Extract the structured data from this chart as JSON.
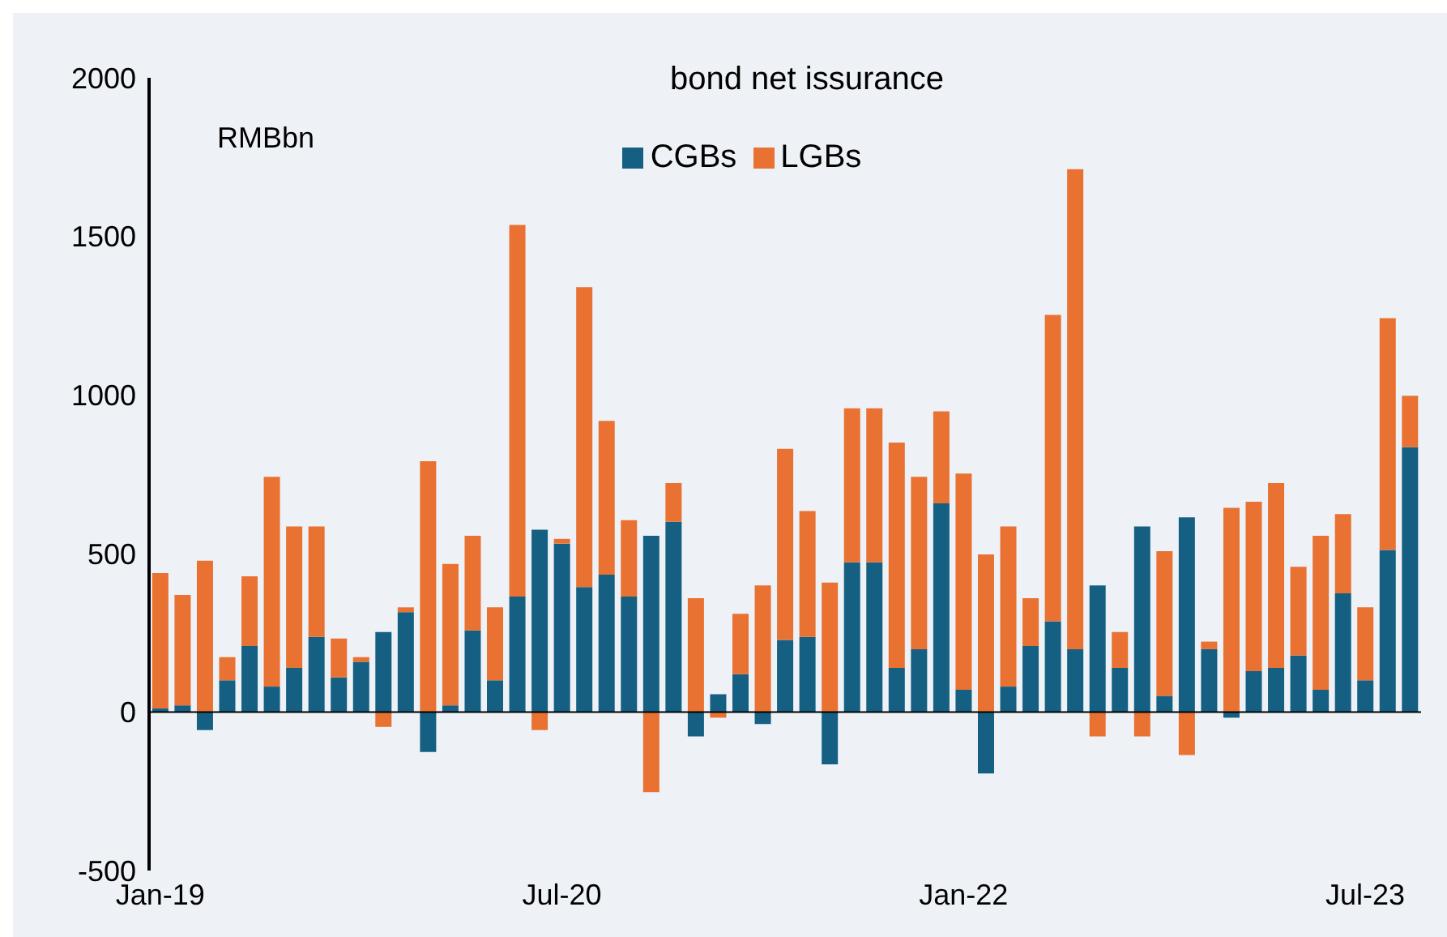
{
  "chart_data": {
    "type": "bar",
    "title": "bond net issurance",
    "ylabel": "RMBbn",
    "stacked": true,
    "legend": "top",
    "categories": [
      "Jan-19",
      null,
      null,
      null,
      null,
      null,
      null,
      null,
      null,
      null,
      null,
      null,
      null,
      null,
      null,
      null,
      null,
      null,
      "Jul-20",
      null,
      null,
      null,
      null,
      null,
      null,
      null,
      null,
      null,
      null,
      null,
      null,
      null,
      null,
      null,
      null,
      null,
      "Jan-22",
      null,
      null,
      null,
      null,
      null,
      null,
      null,
      null,
      null,
      null,
      null,
      null,
      null,
      null,
      null,
      null,
      null,
      "Jul-23",
      null,
      null
    ],
    "series": [
      {
        "name": "CGBs",
        "color": "#156082",
        "values": [
          11,
          21,
          -57,
          100,
          208,
          80,
          139,
          237,
          109,
          158,
          252,
          315,
          -126,
          21,
          257,
          100,
          364,
          575,
          531,
          394,
          433,
          364,
          556,
          600,
          -77,
          56,
          119,
          -38,
          227,
          237,
          -165,
          472,
          472,
          139,
          198,
          658,
          70,
          -194,
          80,
          208,
          286,
          198,
          399,
          139,
          585,
          51,
          614,
          198,
          -18,
          129,
          139,
          178,
          70,
          374,
          100,
          511,
          835
        ]
      },
      {
        "name": "LGBs",
        "color": "#e97132",
        "values": [
          427,
          348,
          477,
          73,
          220,
          662,
          446,
          348,
          123,
          15,
          -47,
          15,
          791,
          446,
          299,
          230,
          1172,
          -57,
          15,
          946,
          485,
          241,
          -253,
          122,
          359,
          -18,
          191,
          399,
          603,
          397,
          408,
          486,
          486,
          711,
          544,
          290,
          682,
          497,
          505,
          151,
          966,
          1514,
          -77,
          113,
          -77,
          456,
          -136,
          24,
          644,
          534,
          583,
          280,
          486,
          250,
          230,
          731,
          162
        ]
      }
    ],
    "ylim": [
      -500,
      2000
    ],
    "yticks": [
      -500,
      0,
      500,
      1000,
      1500,
      2000
    ],
    "ref_lines": [
      {
        "axis": "y",
        "value": 0,
        "color": "#000000"
      }
    ]
  }
}
